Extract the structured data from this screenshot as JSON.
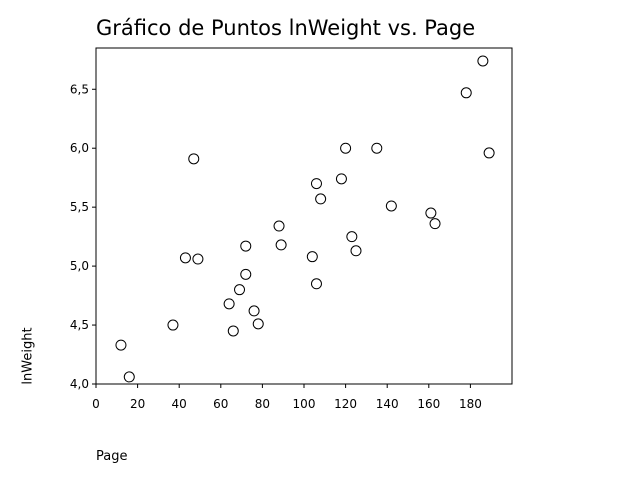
{
  "chart_data": {
    "type": "scatter",
    "title": "Gráfico de Puntos lnWeight vs. Page",
    "xlabel": "Page",
    "ylabel": "lnWeight",
    "xlim": [
      0,
      200
    ],
    "ylim": [
      4.0,
      6.85
    ],
    "x_ticks": [
      0,
      20,
      40,
      60,
      80,
      100,
      120,
      140,
      160,
      180
    ],
    "x_tick_labels": [
      "0",
      "20",
      "40",
      "60",
      "80",
      "100",
      "120",
      "140",
      "160",
      "180"
    ],
    "y_ticks": [
      4.0,
      4.5,
      5.0,
      5.5,
      6.0,
      6.5
    ],
    "y_tick_labels": [
      "4,0",
      "4,5",
      "5,0",
      "5,5",
      "6,0",
      "6,5"
    ],
    "grid": false,
    "legend": "none",
    "marker": "open-circle",
    "points": [
      {
        "x": 12,
        "y": 4.33
      },
      {
        "x": 16,
        "y": 4.06
      },
      {
        "x": 37,
        "y": 4.5
      },
      {
        "x": 43,
        "y": 5.07
      },
      {
        "x": 47,
        "y": 5.91
      },
      {
        "x": 49,
        "y": 5.06
      },
      {
        "x": 64,
        "y": 4.68
      },
      {
        "x": 66,
        "y": 4.45
      },
      {
        "x": 69,
        "y": 4.8
      },
      {
        "x": 72,
        "y": 5.17
      },
      {
        "x": 72,
        "y": 4.93
      },
      {
        "x": 76,
        "y": 4.62
      },
      {
        "x": 78,
        "y": 4.51
      },
      {
        "x": 88,
        "y": 5.34
      },
      {
        "x": 89,
        "y": 5.18
      },
      {
        "x": 104,
        "y": 5.08
      },
      {
        "x": 106,
        "y": 5.7
      },
      {
        "x": 106,
        "y": 4.85
      },
      {
        "x": 108,
        "y": 5.57
      },
      {
        "x": 118,
        "y": 5.74
      },
      {
        "x": 120,
        "y": 6.0
      },
      {
        "x": 123,
        "y": 5.25
      },
      {
        "x": 125,
        "y": 5.13
      },
      {
        "x": 135,
        "y": 6.0
      },
      {
        "x": 142,
        "y": 5.51
      },
      {
        "x": 161,
        "y": 5.45
      },
      {
        "x": 163,
        "y": 5.36
      },
      {
        "x": 178,
        "y": 6.47
      },
      {
        "x": 186,
        "y": 6.74
      },
      {
        "x": 189,
        "y": 5.96
      }
    ]
  }
}
